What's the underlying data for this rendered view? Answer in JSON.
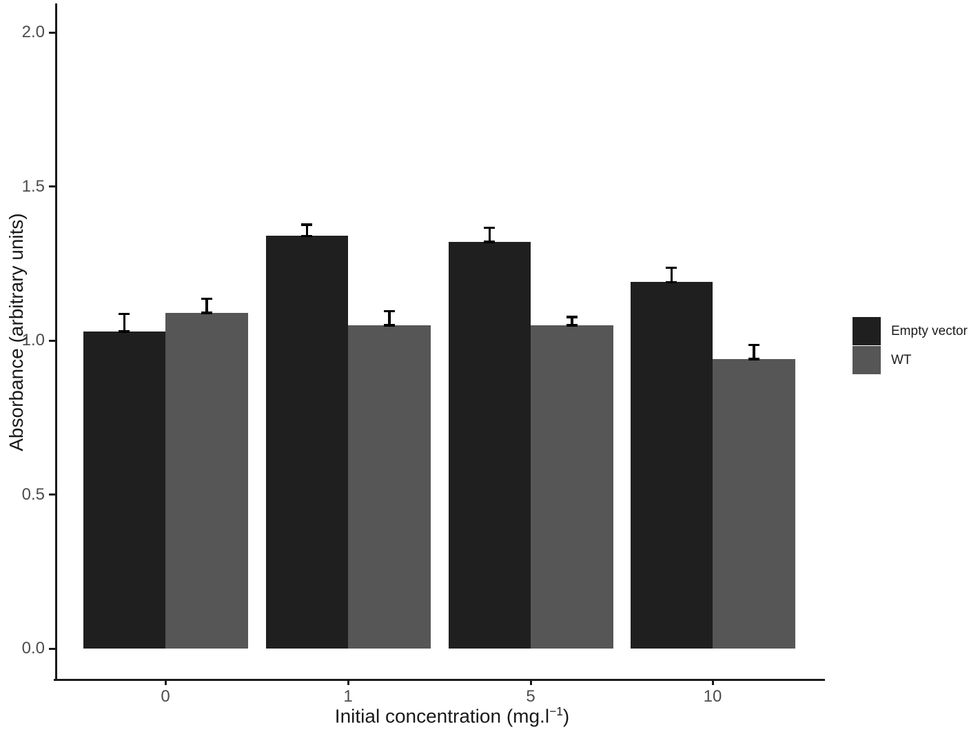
{
  "chart_data": {
    "type": "bar",
    "title": "",
    "xlabel": "Initial concentration (mg.l−1)",
    "ylabel": "Absorbance (arbitrary units)",
    "categories": [
      "0",
      "1",
      "5",
      "10"
    ],
    "series": [
      {
        "name": "Empty vector",
        "color": "#1f1f1f",
        "values": [
          1.03,
          1.34,
          1.32,
          1.19
        ],
        "errors": [
          0.06,
          0.04,
          0.05,
          0.05
        ]
      },
      {
        "name": "WT",
        "color": "#565656",
        "values": [
          1.09,
          1.05,
          1.05,
          0.94
        ],
        "errors": [
          0.05,
          0.05,
          0.03,
          0.05
        ]
      }
    ],
    "y_ticks": [
      "0.0",
      "0.5",
      "1.0",
      "1.5",
      "2.0"
    ],
    "ylim": [
      0,
      2.0
    ],
    "grid": false,
    "legend_position": "right",
    "error_bars": "upper, capped"
  },
  "labels": {
    "xlabel_prefix": "Initial concentration (mg.l",
    "xlabel_sup": "−1",
    "xlabel_suffix": ")"
  }
}
